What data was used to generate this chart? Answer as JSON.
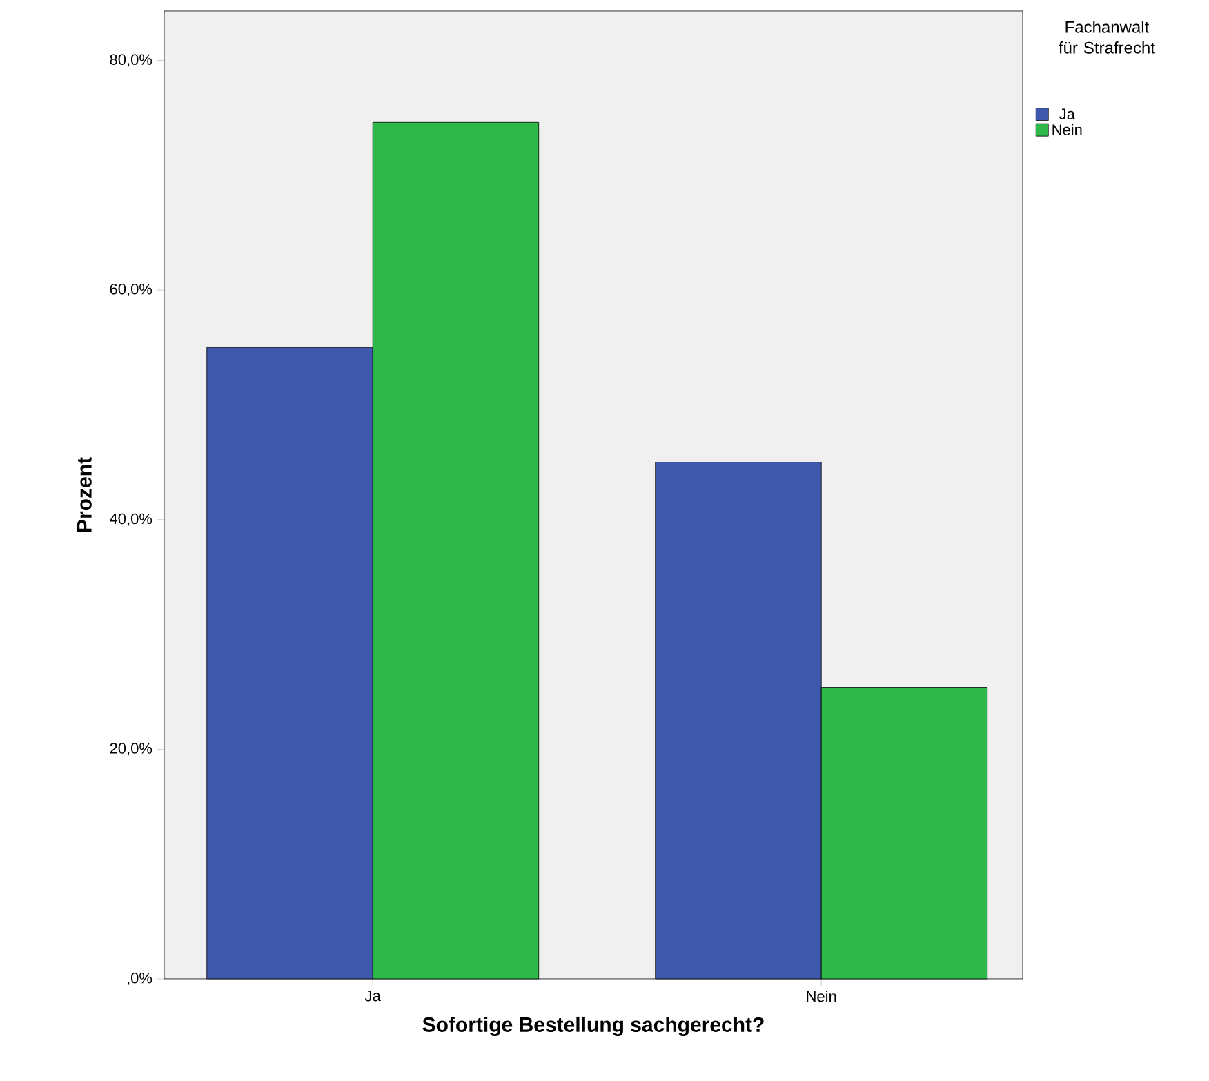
{
  "chart_data": {
    "type": "bar",
    "xlabel": "Sofortige Bestellung sachgerecht?",
    "ylabel": "Prozent",
    "legend_title": "Fachanwalt für Strafrecht",
    "categories": [
      "Ja",
      "Nein"
    ],
    "series": [
      {
        "name": "Ja",
        "color": "#3e58ac",
        "values": [
          55.0,
          45.0
        ]
      },
      {
        "name": "Nein",
        "color": "#2eb84a",
        "values": [
          74.6,
          25.4
        ]
      }
    ],
    "ylim": [
      0,
      84.3
    ],
    "yticks": [
      {
        "value": 0,
        "label": ",0%"
      },
      {
        "value": 20,
        "label": "20,0%"
      },
      {
        "value": 40,
        "label": "40,0%"
      },
      {
        "value": 60,
        "label": "60,0%"
      },
      {
        "value": 80,
        "label": "80,0%"
      }
    ],
    "grid": false,
    "legend": "top right"
  }
}
